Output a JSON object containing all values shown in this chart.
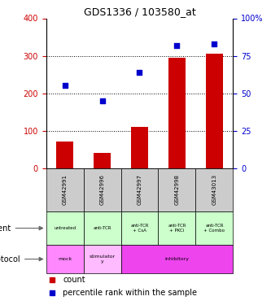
{
  "title": "GDS1336 / 103580_at",
  "samples": [
    "GSM42991",
    "GSM42996",
    "GSM42997",
    "GSM42998",
    "GSM43013"
  ],
  "counts": [
    70,
    40,
    110,
    295,
    305
  ],
  "percentiles": [
    55,
    45,
    64,
    82,
    83
  ],
  "ylim_left": [
    0,
    400
  ],
  "ylim_right": [
    0,
    100
  ],
  "yticks_left": [
    0,
    100,
    200,
    300,
    400
  ],
  "yticks_right": [
    0,
    25,
    50,
    75,
    100
  ],
  "bar_color": "#cc0000",
  "scatter_color": "#0000cc",
  "agent_labels": [
    "untreated",
    "anti-TCR",
    "anti-TCR\n+ CsA",
    "anti-TCR\n+ PKCi",
    "anti-TCR\n+ Combo"
  ],
  "protocol_configs": [
    [
      0,
      1,
      "#ff88ff",
      "mock"
    ],
    [
      1,
      2,
      "#ffbbff",
      "stimulator\ny"
    ],
    [
      2,
      5,
      "#ee44ee",
      "inhibitory"
    ]
  ],
  "agent_bg": "#ccffcc",
  "sample_bg": "#cccccc",
  "left_ylabel_color": "#cc0000",
  "right_ylabel_color": "#0000cc",
  "gridline_ticks": [
    100,
    200,
    300
  ]
}
